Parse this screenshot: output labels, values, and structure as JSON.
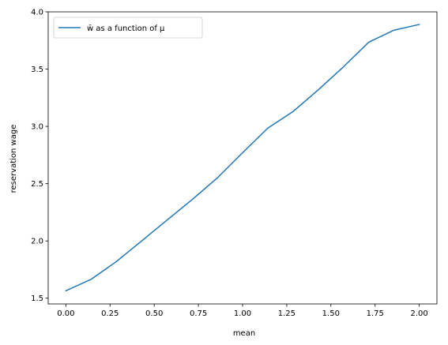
{
  "chart_data": {
    "type": "line",
    "title": "",
    "xlabel": "mean",
    "ylabel": "reservation wage",
    "xlim": [
      -0.1,
      2.1
    ],
    "ylim": [
      1.45,
      4.0
    ],
    "xticks": [
      0.0,
      0.25,
      0.5,
      0.75,
      1.0,
      1.25,
      1.5,
      1.75,
      2.0
    ],
    "xtick_labels": [
      "0.00",
      "0.25",
      "0.50",
      "0.75",
      "1.00",
      "1.25",
      "1.50",
      "1.75",
      "2.00"
    ],
    "yticks": [
      1.5,
      2.0,
      2.5,
      3.0,
      3.5,
      4.0
    ],
    "ytick_labels": [
      "1.5",
      "2.0",
      "2.5",
      "3.0",
      "3.5",
      "4.0"
    ],
    "grid": false,
    "legend_position": "upper-left",
    "series": [
      {
        "name": "w̄ as a function of μ",
        "color": "#1f77b4",
        "x": [
          0.0,
          0.143,
          0.286,
          0.429,
          0.571,
          0.714,
          0.857,
          1.0,
          1.143,
          1.286,
          1.429,
          1.571,
          1.714,
          1.857,
          2.0
        ],
        "y": [
          1.565,
          1.665,
          1.82,
          2.0,
          2.18,
          2.36,
          2.55,
          2.77,
          2.985,
          3.13,
          3.32,
          3.52,
          3.735,
          3.84,
          3.89
        ]
      }
    ]
  }
}
